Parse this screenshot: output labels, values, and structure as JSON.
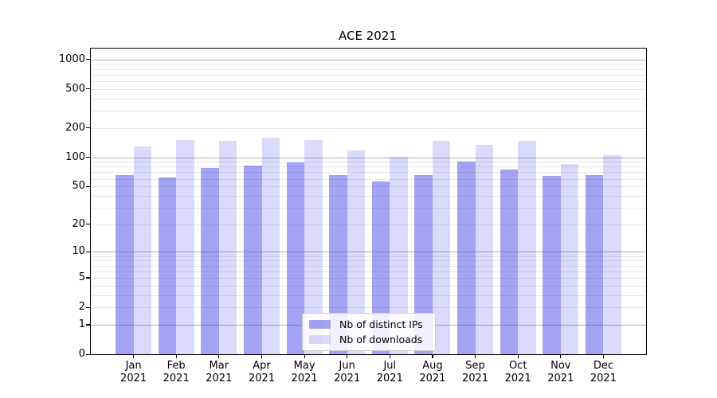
{
  "title": "ACE 2021",
  "chart_data": {
    "type": "bar",
    "title": "ACE 2021",
    "categories": [
      "Jan 2021",
      "Feb 2021",
      "Mar 2021",
      "Apr 2021",
      "May 2021",
      "Jun 2021",
      "Jul 2021",
      "Aug 2021",
      "Sep 2021",
      "Oct 2021",
      "Nov 2021",
      "Dec 2021"
    ],
    "series": [
      {
        "name": "Nb of distinct IPs",
        "color": "rgba(60,60,230,0.47)",
        "solid_color": "#a3a3f3",
        "values": [
          66,
          62,
          78,
          82,
          88,
          66,
          56,
          65,
          90,
          75,
          64,
          66
        ]
      },
      {
        "name": "Nb of downloads",
        "color": "rgba(60,60,230,0.19)",
        "solid_color": "#dadaf9",
        "values": [
          129,
          151,
          146,
          160,
          151,
          117,
          101,
          148,
          135,
          146,
          85,
          105
        ]
      }
    ],
    "xlabel": "",
    "ylabel": "",
    "yscale": "log1p",
    "ylim": [
      0,
      1280
    ],
    "yticks": [
      0,
      1,
      2,
      5,
      10,
      20,
      50,
      100,
      200,
      500,
      1000
    ],
    "grid": {
      "major": [
        1,
        10,
        100,
        1000
      ],
      "minor": [
        2,
        3,
        4,
        5,
        6,
        7,
        8,
        9,
        20,
        30,
        40,
        50,
        60,
        70,
        80,
        90,
        200,
        300,
        400,
        500,
        600,
        700,
        800,
        900
      ]
    },
    "legend": {
      "position": "lower-center",
      "visible": true
    },
    "colors": {
      "major_grid": "#b0b0b0",
      "minor_grid": "#e8e8e8",
      "spine": "#000000",
      "background": "#ffffff"
    }
  }
}
